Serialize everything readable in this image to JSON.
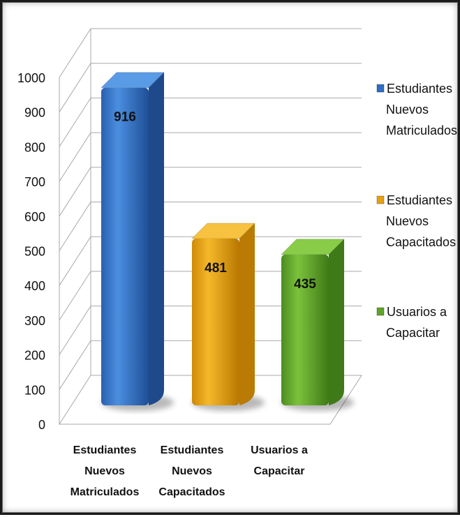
{
  "chart_data": {
    "type": "bar",
    "categories": [
      "Estudiantes Nuevos Matriculados",
      "Estudiantes Nuevos Capacitados",
      "Usuarios a Capacitar"
    ],
    "category_label_lines": [
      [
        "Estudiantes",
        "Nuevos",
        "Matriculados"
      ],
      [
        "Estudiantes",
        "Nuevos",
        "Capacitados"
      ],
      [
        "Usuarios a",
        "Capacitar"
      ]
    ],
    "values": [
      916,
      481,
      435
    ],
    "data_labels": [
      "916",
      "481",
      "435"
    ],
    "ylim": [
      0,
      1000
    ],
    "yticks": [
      "0",
      "100",
      "200",
      "300",
      "400",
      "500",
      "600",
      "700",
      "800",
      "900",
      "1000"
    ],
    "grid": true,
    "three_d": true,
    "legend_position": "right",
    "legend": [
      {
        "lines": [
          "Estudiantes",
          "Nuevos",
          "Matriculados"
        ],
        "color": "#2f6fc4"
      },
      {
        "lines": [
          "Estudiantes",
          "Nuevos",
          "Capacitados"
        ],
        "color": "#e6a214"
      },
      {
        "lines": [
          "Usuarios a",
          "Capacitar"
        ],
        "color": "#5fa42a"
      }
    ],
    "colors": [
      "#2f6fc4",
      "#e6a214",
      "#5fa42a"
    ]
  }
}
